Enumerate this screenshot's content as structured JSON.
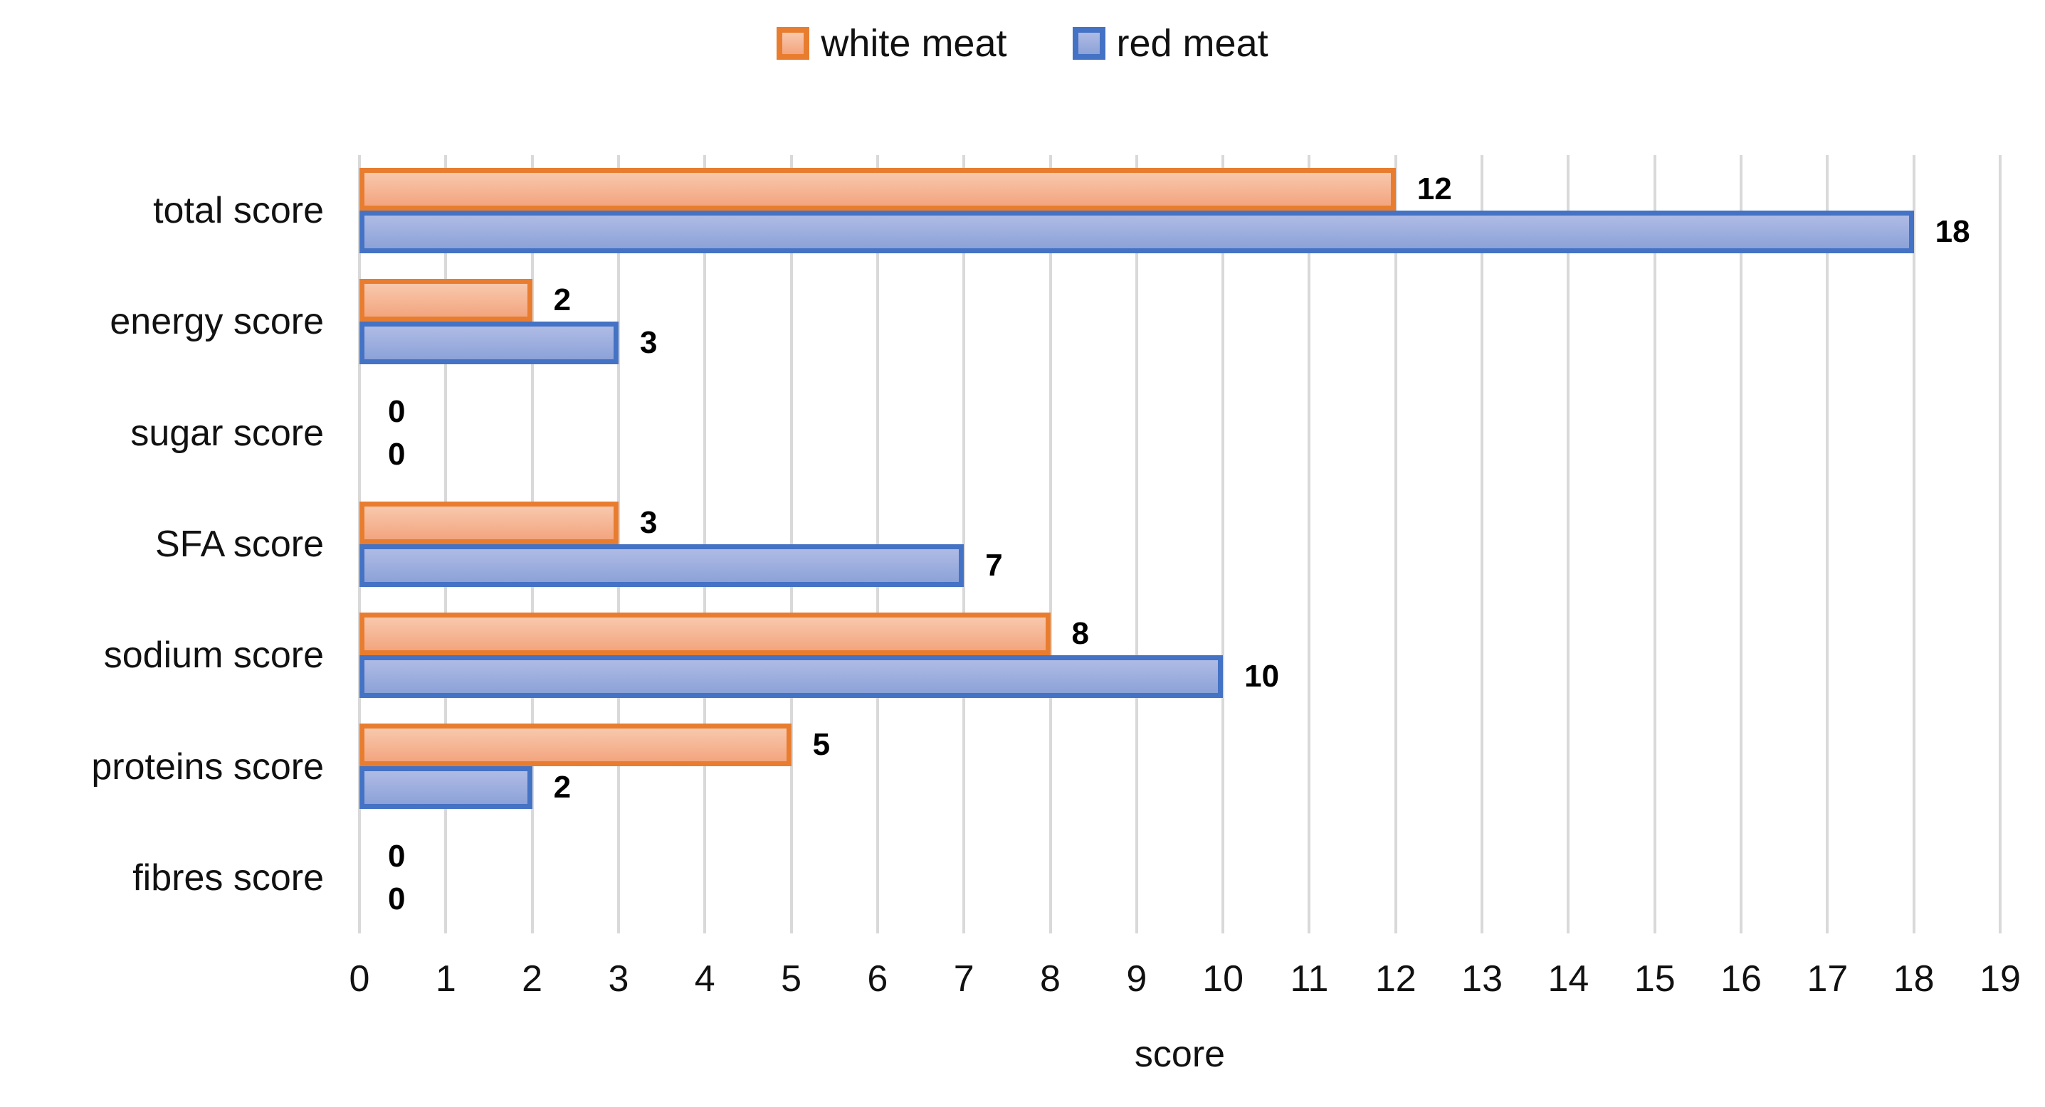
{
  "chart_data": {
    "type": "bar",
    "orientation": "horizontal",
    "title": "",
    "xlabel": "score",
    "ylabel": "",
    "xlim": [
      0,
      19
    ],
    "xticks": [
      0,
      1,
      2,
      3,
      4,
      5,
      6,
      7,
      8,
      9,
      10,
      11,
      12,
      13,
      14,
      15,
      16,
      17,
      18,
      19
    ],
    "grid": true,
    "data_labels": true,
    "legend_position": "top",
    "categories": [
      "total score",
      "energy score",
      "sugar score",
      "SFA score",
      "sodium score",
      "proteins score",
      "fibres score"
    ],
    "series": [
      {
        "name": "white meat",
        "values": [
          12,
          2,
          0,
          3,
          8,
          5,
          0
        ],
        "border_color": "#E87D2F",
        "fill_top": "#F8C8AD",
        "fill_bottom": "#F3A57E"
      },
      {
        "name": "red meat",
        "values": [
          18,
          3,
          0,
          7,
          10,
          2,
          0
        ],
        "border_color": "#4472C4",
        "fill_top": "#AFBBE5",
        "fill_bottom": "#8CA2D8"
      }
    ],
    "gridline_color": "#D9D9D9",
    "text_color": "#111111",
    "label_color": "#000000"
  }
}
